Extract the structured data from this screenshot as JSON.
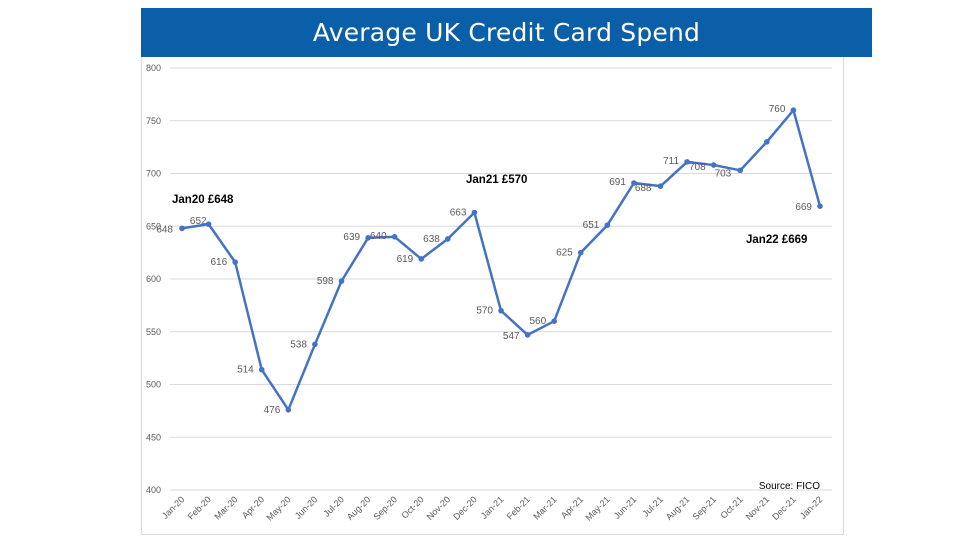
{
  "chart_data": {
    "type": "line",
    "title": "Average UK Credit Card Spend",
    "xlabel": "",
    "ylabel": "",
    "ylim": [
      400,
      800
    ],
    "yticks": [
      400,
      450,
      500,
      550,
      600,
      650,
      700,
      750,
      800
    ],
    "grid": true,
    "legend": "none",
    "series_color": "#4472c4",
    "categories": [
      "Jan-20",
      "Feb-20",
      "Mar-20",
      "Apr-20",
      "May-20",
      "Jun-20",
      "Jul-20",
      "Aug-20",
      "Sep-20",
      "Oct-20",
      "Nov-20",
      "Dec-20",
      "Jan-21",
      "Feb-21",
      "Mar-21",
      "Apr-21",
      "May-21",
      "Jun-21",
      "Jul-21",
      "Aug-21",
      "Sep-21",
      "Oct-21",
      "Nov-21",
      "Dec-21",
      "Jan-22"
    ],
    "values": [
      648,
      652,
      616,
      514,
      476,
      538,
      598,
      639,
      640,
      619,
      638,
      663,
      570,
      547,
      560,
      625,
      651,
      691,
      688,
      711,
      708,
      703,
      730,
      760,
      669
    ],
    "data_labels": [
      "648",
      "652",
      "616",
      "514",
      "476",
      "538",
      "598",
      "639",
      "640",
      "619",
      "638",
      "663",
      "570",
      "547",
      "560",
      "625",
      "651",
      "691",
      "688",
      "711",
      "708",
      "703",
      "",
      "760",
      "669"
    ],
    "annotations": [
      {
        "text": "Jan20 £648",
        "category": "Jan-20"
      },
      {
        "text": "Jan21 £570",
        "category": "Jan-21"
      },
      {
        "text": "Jan22 £669",
        "category": "Jan-22"
      }
    ],
    "source": "Source: FICO"
  }
}
